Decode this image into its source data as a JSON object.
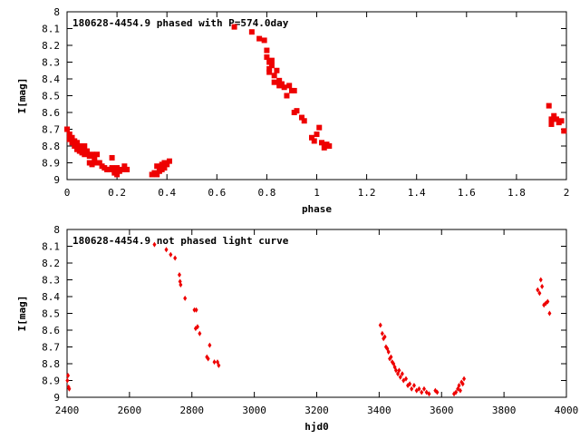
{
  "chart_data": [
    {
      "type": "scatter",
      "title": "180628-4454.9 phased with P=574.0day",
      "xlabel": "phase",
      "ylabel": "I[mag]",
      "xlim": [
        0,
        2
      ],
      "ylim": [
        9,
        8
      ],
      "y_inverted": true,
      "grid": false,
      "marker_color": "#ee0000",
      "xticks": [
        "0",
        "0.2",
        "0.4",
        "0.6",
        "0.8",
        "1",
        "1.2",
        "1.4",
        "1.6",
        "1.8",
        "2"
      ],
      "yticks": [
        "8",
        "8.1",
        "8.2",
        "8.3",
        "8.4",
        "8.5",
        "8.6",
        "8.7",
        "8.8",
        "8.9",
        "9"
      ],
      "points": [
        [
          0.0,
          8.7
        ],
        [
          0.01,
          8.73
        ],
        [
          0.01,
          8.76
        ],
        [
          0.02,
          8.75
        ],
        [
          0.02,
          8.78
        ],
        [
          0.03,
          8.77
        ],
        [
          0.03,
          8.8
        ],
        [
          0.04,
          8.78
        ],
        [
          0.04,
          8.82
        ],
        [
          0.05,
          8.8
        ],
        [
          0.05,
          8.83
        ],
        [
          0.06,
          8.82
        ],
        [
          0.06,
          8.84
        ],
        [
          0.07,
          8.8
        ],
        [
          0.07,
          8.85
        ],
        [
          0.08,
          8.83
        ],
        [
          0.09,
          8.86
        ],
        [
          0.09,
          8.9
        ],
        [
          0.1,
          8.85
        ],
        [
          0.1,
          8.91
        ],
        [
          0.11,
          8.88
        ],
        [
          0.12,
          8.9
        ],
        [
          0.12,
          8.85
        ],
        [
          0.13,
          8.9
        ],
        [
          0.14,
          8.92
        ],
        [
          0.15,
          8.93
        ],
        [
          0.16,
          8.94
        ],
        [
          0.17,
          8.94
        ],
        [
          0.18,
          8.93
        ],
        [
          0.18,
          8.87
        ],
        [
          0.19,
          8.96
        ],
        [
          0.19,
          8.95
        ],
        [
          0.2,
          8.97
        ],
        [
          0.2,
          8.93
        ],
        [
          0.21,
          8.95
        ],
        [
          0.22,
          8.94
        ],
        [
          0.23,
          8.92
        ],
        [
          0.24,
          8.94
        ],
        [
          0.34,
          8.97
        ],
        [
          0.35,
          8.96
        ],
        [
          0.36,
          8.97
        ],
        [
          0.36,
          8.92
        ],
        [
          0.37,
          8.95
        ],
        [
          0.37,
          8.93
        ],
        [
          0.38,
          8.94
        ],
        [
          0.38,
          8.91
        ],
        [
          0.39,
          8.9
        ],
        [
          0.39,
          8.93
        ],
        [
          0.4,
          8.91
        ],
        [
          0.41,
          8.89
        ],
        [
          0.67,
          8.09
        ],
        [
          0.74,
          8.12
        ],
        [
          0.77,
          8.16
        ],
        [
          0.79,
          8.17
        ],
        [
          0.8,
          8.23
        ],
        [
          0.8,
          8.27
        ],
        [
          0.81,
          8.3
        ],
        [
          0.81,
          8.34
        ],
        [
          0.81,
          8.36
        ],
        [
          0.82,
          8.29
        ],
        [
          0.82,
          8.32
        ],
        [
          0.83,
          8.38
        ],
        [
          0.83,
          8.42
        ],
        [
          0.84,
          8.35
        ],
        [
          0.85,
          8.41
        ],
        [
          0.85,
          8.44
        ],
        [
          0.86,
          8.43
        ],
        [
          0.87,
          8.45
        ],
        [
          0.88,
          8.5
        ],
        [
          0.89,
          8.44
        ],
        [
          0.9,
          8.47
        ],
        [
          0.91,
          8.47
        ],
        [
          0.91,
          8.6
        ],
        [
          0.92,
          8.59
        ],
        [
          0.94,
          8.63
        ],
        [
          0.95,
          8.65
        ],
        [
          0.98,
          8.75
        ],
        [
          0.99,
          8.77
        ],
        [
          1.0,
          8.73
        ],
        [
          1.01,
          8.69
        ],
        [
          1.02,
          8.78
        ],
        [
          1.03,
          8.81
        ],
        [
          1.04,
          8.79
        ],
        [
          1.05,
          8.8
        ],
        [
          1.93,
          8.56
        ],
        [
          1.94,
          8.64
        ],
        [
          1.94,
          8.67
        ],
        [
          1.95,
          8.62
        ],
        [
          1.96,
          8.64
        ],
        [
          1.97,
          8.66
        ],
        [
          1.98,
          8.65
        ],
        [
          1.99,
          8.71
        ]
      ]
    },
    {
      "type": "scatter",
      "title": "180628-4454.9 not phased light curve",
      "xlabel": "hjd0",
      "ylabel": "I[mag]",
      "xlim": [
        2400,
        4000
      ],
      "ylim": [
        9,
        8
      ],
      "y_inverted": true,
      "grid": false,
      "marker_color": "#ee0000",
      "xticks": [
        "2400",
        "2600",
        "2800",
        "3000",
        "3200",
        "3400",
        "3600",
        "3800",
        "4000"
      ],
      "yticks": [
        "8",
        "8.1",
        "8.2",
        "8.3",
        "8.4",
        "8.5",
        "8.6",
        "8.7",
        "8.8",
        "8.9",
        "9"
      ],
      "points": [
        [
          2401,
          8.9
        ],
        [
          2403,
          8.87
        ],
        [
          2405,
          8.94
        ],
        [
          2407,
          8.95
        ],
        [
          2680,
          8.09
        ],
        [
          2718,
          8.12
        ],
        [
          2732,
          8.15
        ],
        [
          2746,
          8.17
        ],
        [
          2760,
          8.27
        ],
        [
          2762,
          8.31
        ],
        [
          2764,
          8.33
        ],
        [
          2778,
          8.41
        ],
        [
          2808,
          8.48
        ],
        [
          2814,
          8.48
        ],
        [
          2812,
          8.59
        ],
        [
          2818,
          8.58
        ],
        [
          2825,
          8.62
        ],
        [
          2848,
          8.76
        ],
        [
          2852,
          8.77
        ],
        [
          2857,
          8.69
        ],
        [
          2872,
          8.79
        ],
        [
          2882,
          8.79
        ],
        [
          2886,
          8.81
        ],
        [
          3404,
          8.57
        ],
        [
          3410,
          8.62
        ],
        [
          3414,
          8.65
        ],
        [
          3418,
          8.64
        ],
        [
          3422,
          8.7
        ],
        [
          3426,
          8.71
        ],
        [
          3430,
          8.73
        ],
        [
          3434,
          8.77
        ],
        [
          3438,
          8.76
        ],
        [
          3442,
          8.79
        ],
        [
          3446,
          8.8
        ],
        [
          3450,
          8.82
        ],
        [
          3454,
          8.84
        ],
        [
          3460,
          8.86
        ],
        [
          3464,
          8.84
        ],
        [
          3468,
          8.88
        ],
        [
          3474,
          8.86
        ],
        [
          3478,
          8.9
        ],
        [
          3486,
          8.89
        ],
        [
          3492,
          8.93
        ],
        [
          3498,
          8.92
        ],
        [
          3504,
          8.95
        ],
        [
          3512,
          8.93
        ],
        [
          3520,
          8.96
        ],
        [
          3528,
          8.95
        ],
        [
          3536,
          8.97
        ],
        [
          3544,
          8.95
        ],
        [
          3552,
          8.97
        ],
        [
          3560,
          8.98
        ],
        [
          3580,
          8.96
        ],
        [
          3586,
          8.97
        ],
        [
          3640,
          8.98
        ],
        [
          3646,
          8.97
        ],
        [
          3652,
          8.95
        ],
        [
          3656,
          8.93
        ],
        [
          3660,
          8.96
        ],
        [
          3664,
          8.91
        ],
        [
          3668,
          8.92
        ],
        [
          3672,
          8.89
        ],
        [
          3908,
          8.36
        ],
        [
          3914,
          8.38
        ],
        [
          3918,
          8.3
        ],
        [
          3922,
          8.34
        ],
        [
          3928,
          8.45
        ],
        [
          3934,
          8.44
        ],
        [
          3940,
          8.43
        ],
        [
          3946,
          8.5
        ]
      ]
    }
  ]
}
